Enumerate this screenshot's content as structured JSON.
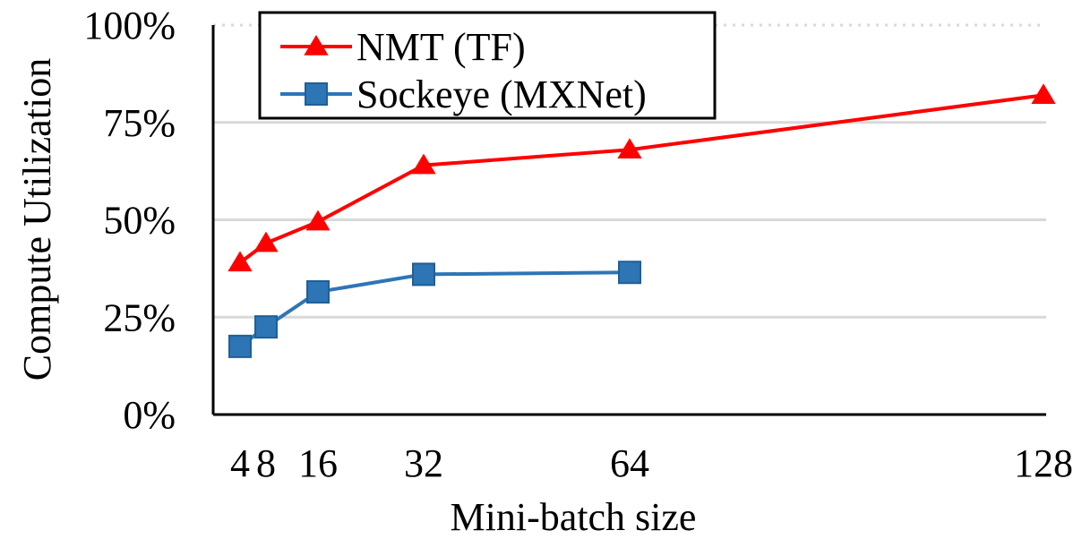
{
  "chart_data": {
    "type": "line",
    "xlabel": "Mini-batch size",
    "ylabel": "Compute Utilization",
    "x": [
      4,
      8,
      16,
      32,
      64,
      128
    ],
    "x_tick_labels": [
      "4",
      "8",
      "16",
      "32",
      "64",
      "128"
    ],
    "y_tick_labels": [
      "0%",
      "25%",
      "50%",
      "75%",
      "100%"
    ],
    "ylim": [
      0,
      100
    ],
    "y_unit": "%",
    "grid": "horizontal",
    "legend_position": "top-left",
    "series": [
      {
        "name": "NMT (TF)",
        "marker": "triangle",
        "color": "#ff0000",
        "points": [
          {
            "x": 4,
            "y": 39
          },
          {
            "x": 8,
            "y": 44
          },
          {
            "x": 16,
            "y": 49.5
          },
          {
            "x": 32,
            "y": 64
          },
          {
            "x": 64,
            "y": 68
          },
          {
            "x": 128,
            "y": 82
          }
        ]
      },
      {
        "name": "Sockeye (MXNet)",
        "marker": "square",
        "color": "#2e75b6",
        "points": [
          {
            "x": 4,
            "y": 17.5
          },
          {
            "x": 8,
            "y": 22.5
          },
          {
            "x": 16,
            "y": 31.5
          },
          {
            "x": 32,
            "y": 36
          },
          {
            "x": 64,
            "y": 36.5
          }
        ]
      }
    ]
  }
}
